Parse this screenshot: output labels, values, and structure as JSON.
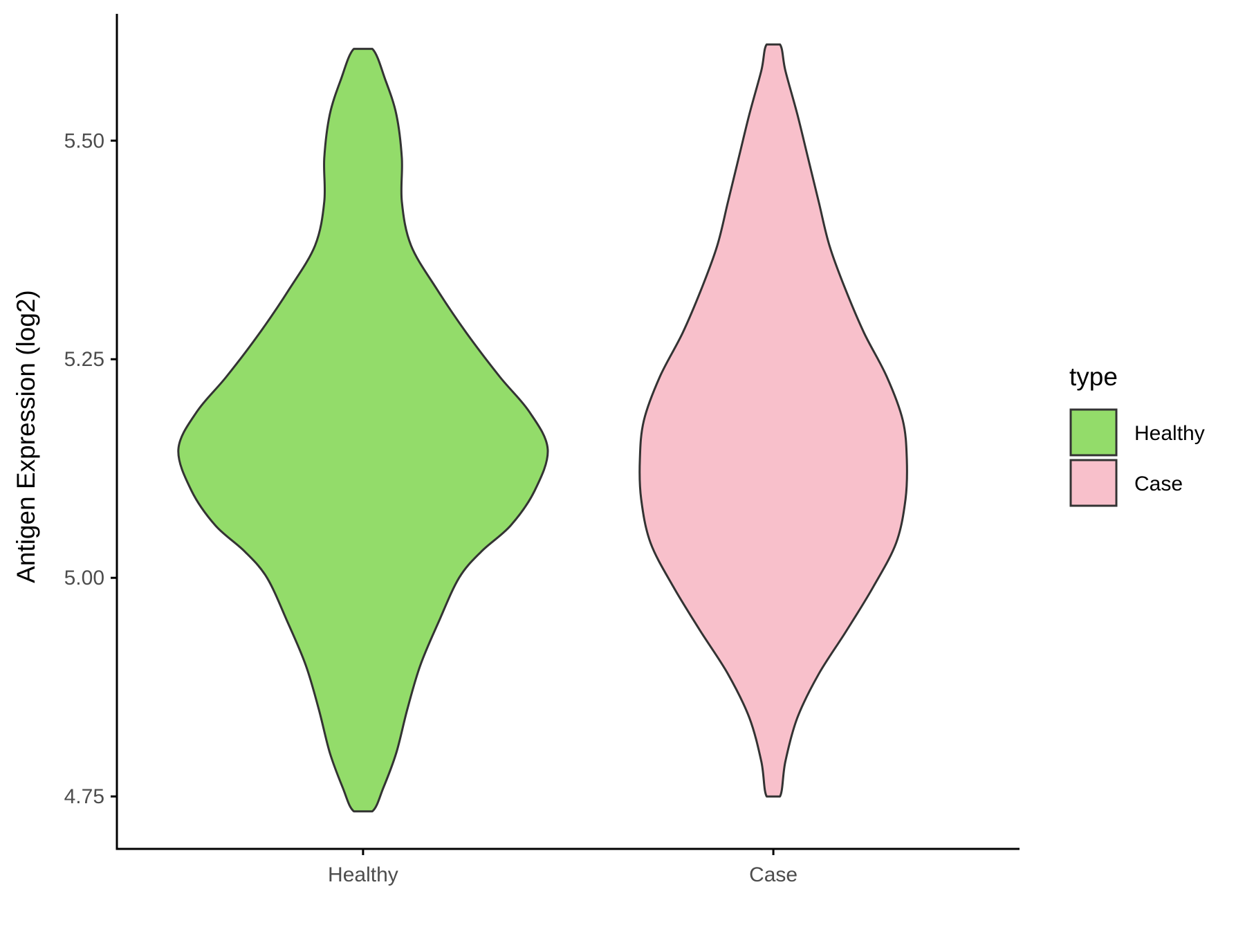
{
  "chart_data": {
    "type": "violin",
    "title": "",
    "xlabel": "",
    "ylabel": "Antigen Expression (log2)",
    "categories": [
      "Healthy",
      "Case"
    ],
    "ylim": [
      4.69,
      5.645
    ],
    "yticks": [
      4.75,
      5.0,
      5.25,
      5.5
    ],
    "ytick_labels": [
      "4.75",
      "5.00",
      "5.25",
      "5.50"
    ],
    "grid": false,
    "legend": {
      "title": "type",
      "placement": "right",
      "entries": [
        {
          "label": "Healthy",
          "color": "#93dc6a"
        },
        {
          "label": "Case",
          "color": "#f8c0cb"
        }
      ]
    },
    "series": [
      {
        "category": "Healthy",
        "color": "#93dc6a",
        "y_min": 4.733,
        "y_max": 5.605,
        "density_profile": [
          [
            4.733,
            0.05
          ],
          [
            4.76,
            0.11
          ],
          [
            4.8,
            0.18
          ],
          [
            4.85,
            0.24
          ],
          [
            4.9,
            0.31
          ],
          [
            4.95,
            0.41
          ],
          [
            5.0,
            0.52
          ],
          [
            5.03,
            0.64
          ],
          [
            5.06,
            0.8
          ],
          [
            5.1,
            0.93
          ],
          [
            5.147,
            1.0
          ],
          [
            5.19,
            0.9
          ],
          [
            5.23,
            0.74
          ],
          [
            5.28,
            0.56
          ],
          [
            5.33,
            0.4
          ],
          [
            5.38,
            0.26
          ],
          [
            5.43,
            0.21
          ],
          [
            5.48,
            0.21
          ],
          [
            5.53,
            0.18
          ],
          [
            5.57,
            0.12
          ],
          [
            5.605,
            0.05
          ]
        ]
      },
      {
        "category": "Case",
        "color": "#f8c0cb",
        "y_min": 4.75,
        "y_max": 5.61,
        "density_profile": [
          [
            4.75,
            0.05
          ],
          [
            4.79,
            0.09
          ],
          [
            4.84,
            0.18
          ],
          [
            4.89,
            0.34
          ],
          [
            4.94,
            0.55
          ],
          [
            4.99,
            0.75
          ],
          [
            5.04,
            0.92
          ],
          [
            5.09,
            0.99
          ],
          [
            5.135,
            1.0
          ],
          [
            5.18,
            0.97
          ],
          [
            5.23,
            0.85
          ],
          [
            5.28,
            0.68
          ],
          [
            5.33,
            0.54
          ],
          [
            5.38,
            0.42
          ],
          [
            5.43,
            0.34
          ],
          [
            5.48,
            0.26
          ],
          [
            5.53,
            0.18
          ],
          [
            5.58,
            0.09
          ],
          [
            5.61,
            0.05
          ]
        ]
      }
    ]
  },
  "colors": {
    "axis": "#000000",
    "outline": "#333333",
    "tick_text": "#4d4d4d"
  }
}
